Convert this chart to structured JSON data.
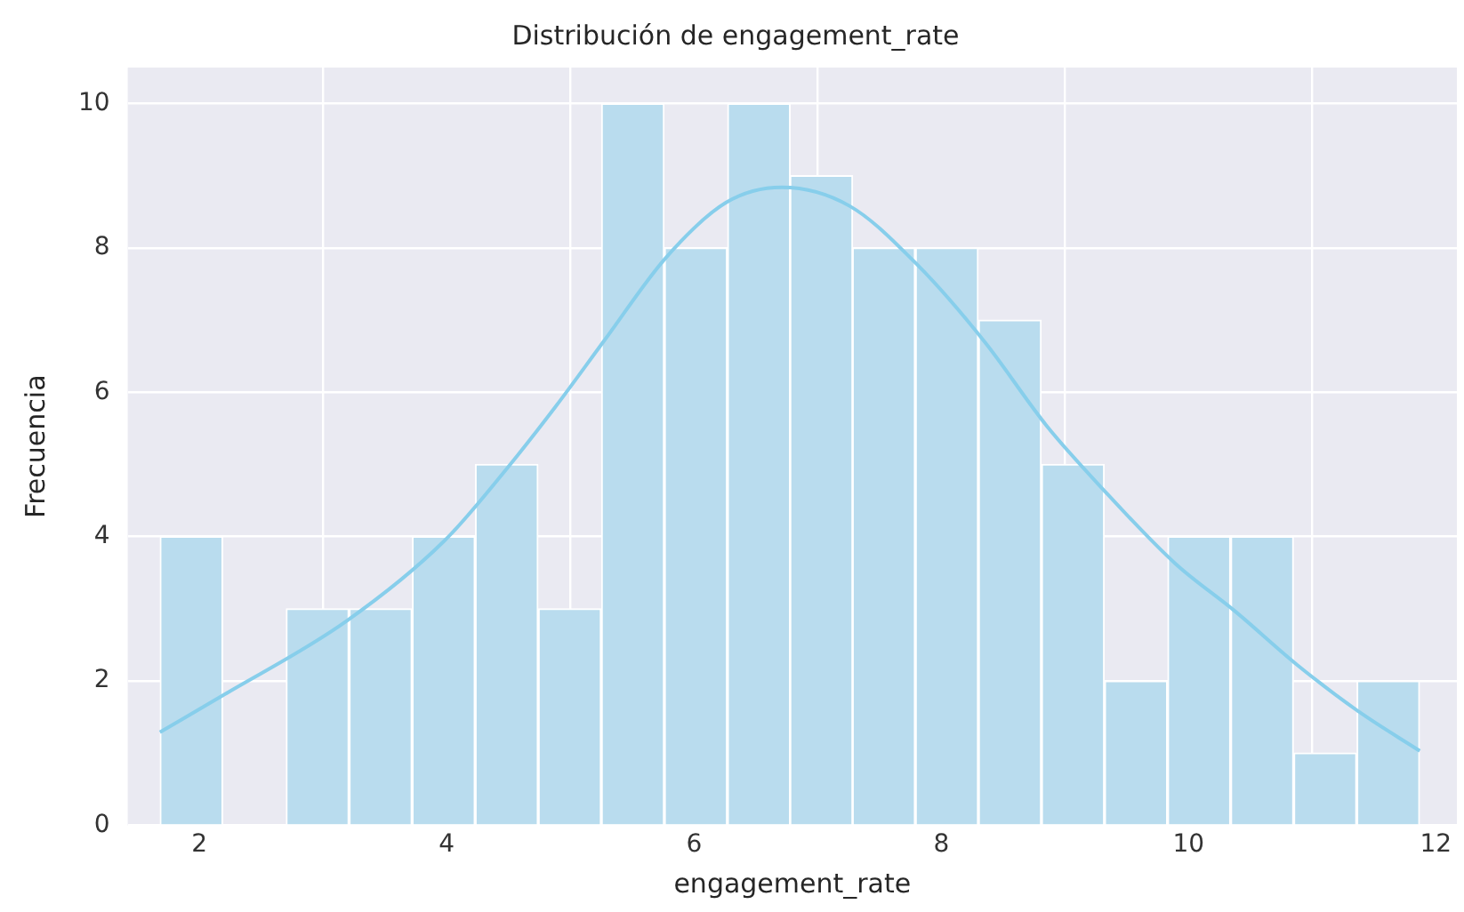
{
  "chart_data": {
    "type": "histogram",
    "title": "Distribución de engagement_rate",
    "xlabel": "engagement_rate",
    "ylabel": "Frecuencia",
    "series": [
      {
        "color": "#b9dcee",
        "bins": [
          1.68,
          2.19,
          2.7,
          3.21,
          3.72,
          4.23,
          4.74,
          5.25,
          5.76,
          6.27,
          6.78,
          7.28,
          7.79,
          8.3,
          8.81,
          9.32,
          9.83,
          10.34,
          10.85,
          11.36,
          11.87
        ],
        "values": [
          4,
          0,
          3,
          3,
          4,
          5,
          3,
          10,
          8,
          10,
          9,
          8,
          8,
          7,
          5,
          2,
          4,
          4,
          1,
          2
        ]
      },
      {
        "type": "line",
        "color": "#87ceeb",
        "x": [
          1.68,
          2.19,
          3.19,
          3.98,
          4.48,
          4.88,
          5.28,
          5.77,
          6.26,
          6.71,
          7.26,
          7.81,
          8.35,
          8.85,
          9.3,
          9.89,
          10.38,
          10.88,
          11.38,
          11.87
        ],
        "values": [
          1.29,
          1.8,
          2.83,
          3.94,
          4.93,
          5.8,
          6.73,
          7.86,
          8.63,
          8.84,
          8.58,
          7.76,
          6.7,
          5.54,
          4.67,
          3.63,
          2.96,
          2.22,
          1.57,
          1.03
        ]
      }
    ],
    "xlim": [
      1.42,
      12.17
    ],
    "xticks": [
      2,
      4,
      6,
      8,
      10,
      12
    ],
    "ylim": [
      0,
      10.5
    ],
    "yticks": [
      0,
      2,
      4,
      6,
      8,
      10
    ],
    "grid": true
  }
}
